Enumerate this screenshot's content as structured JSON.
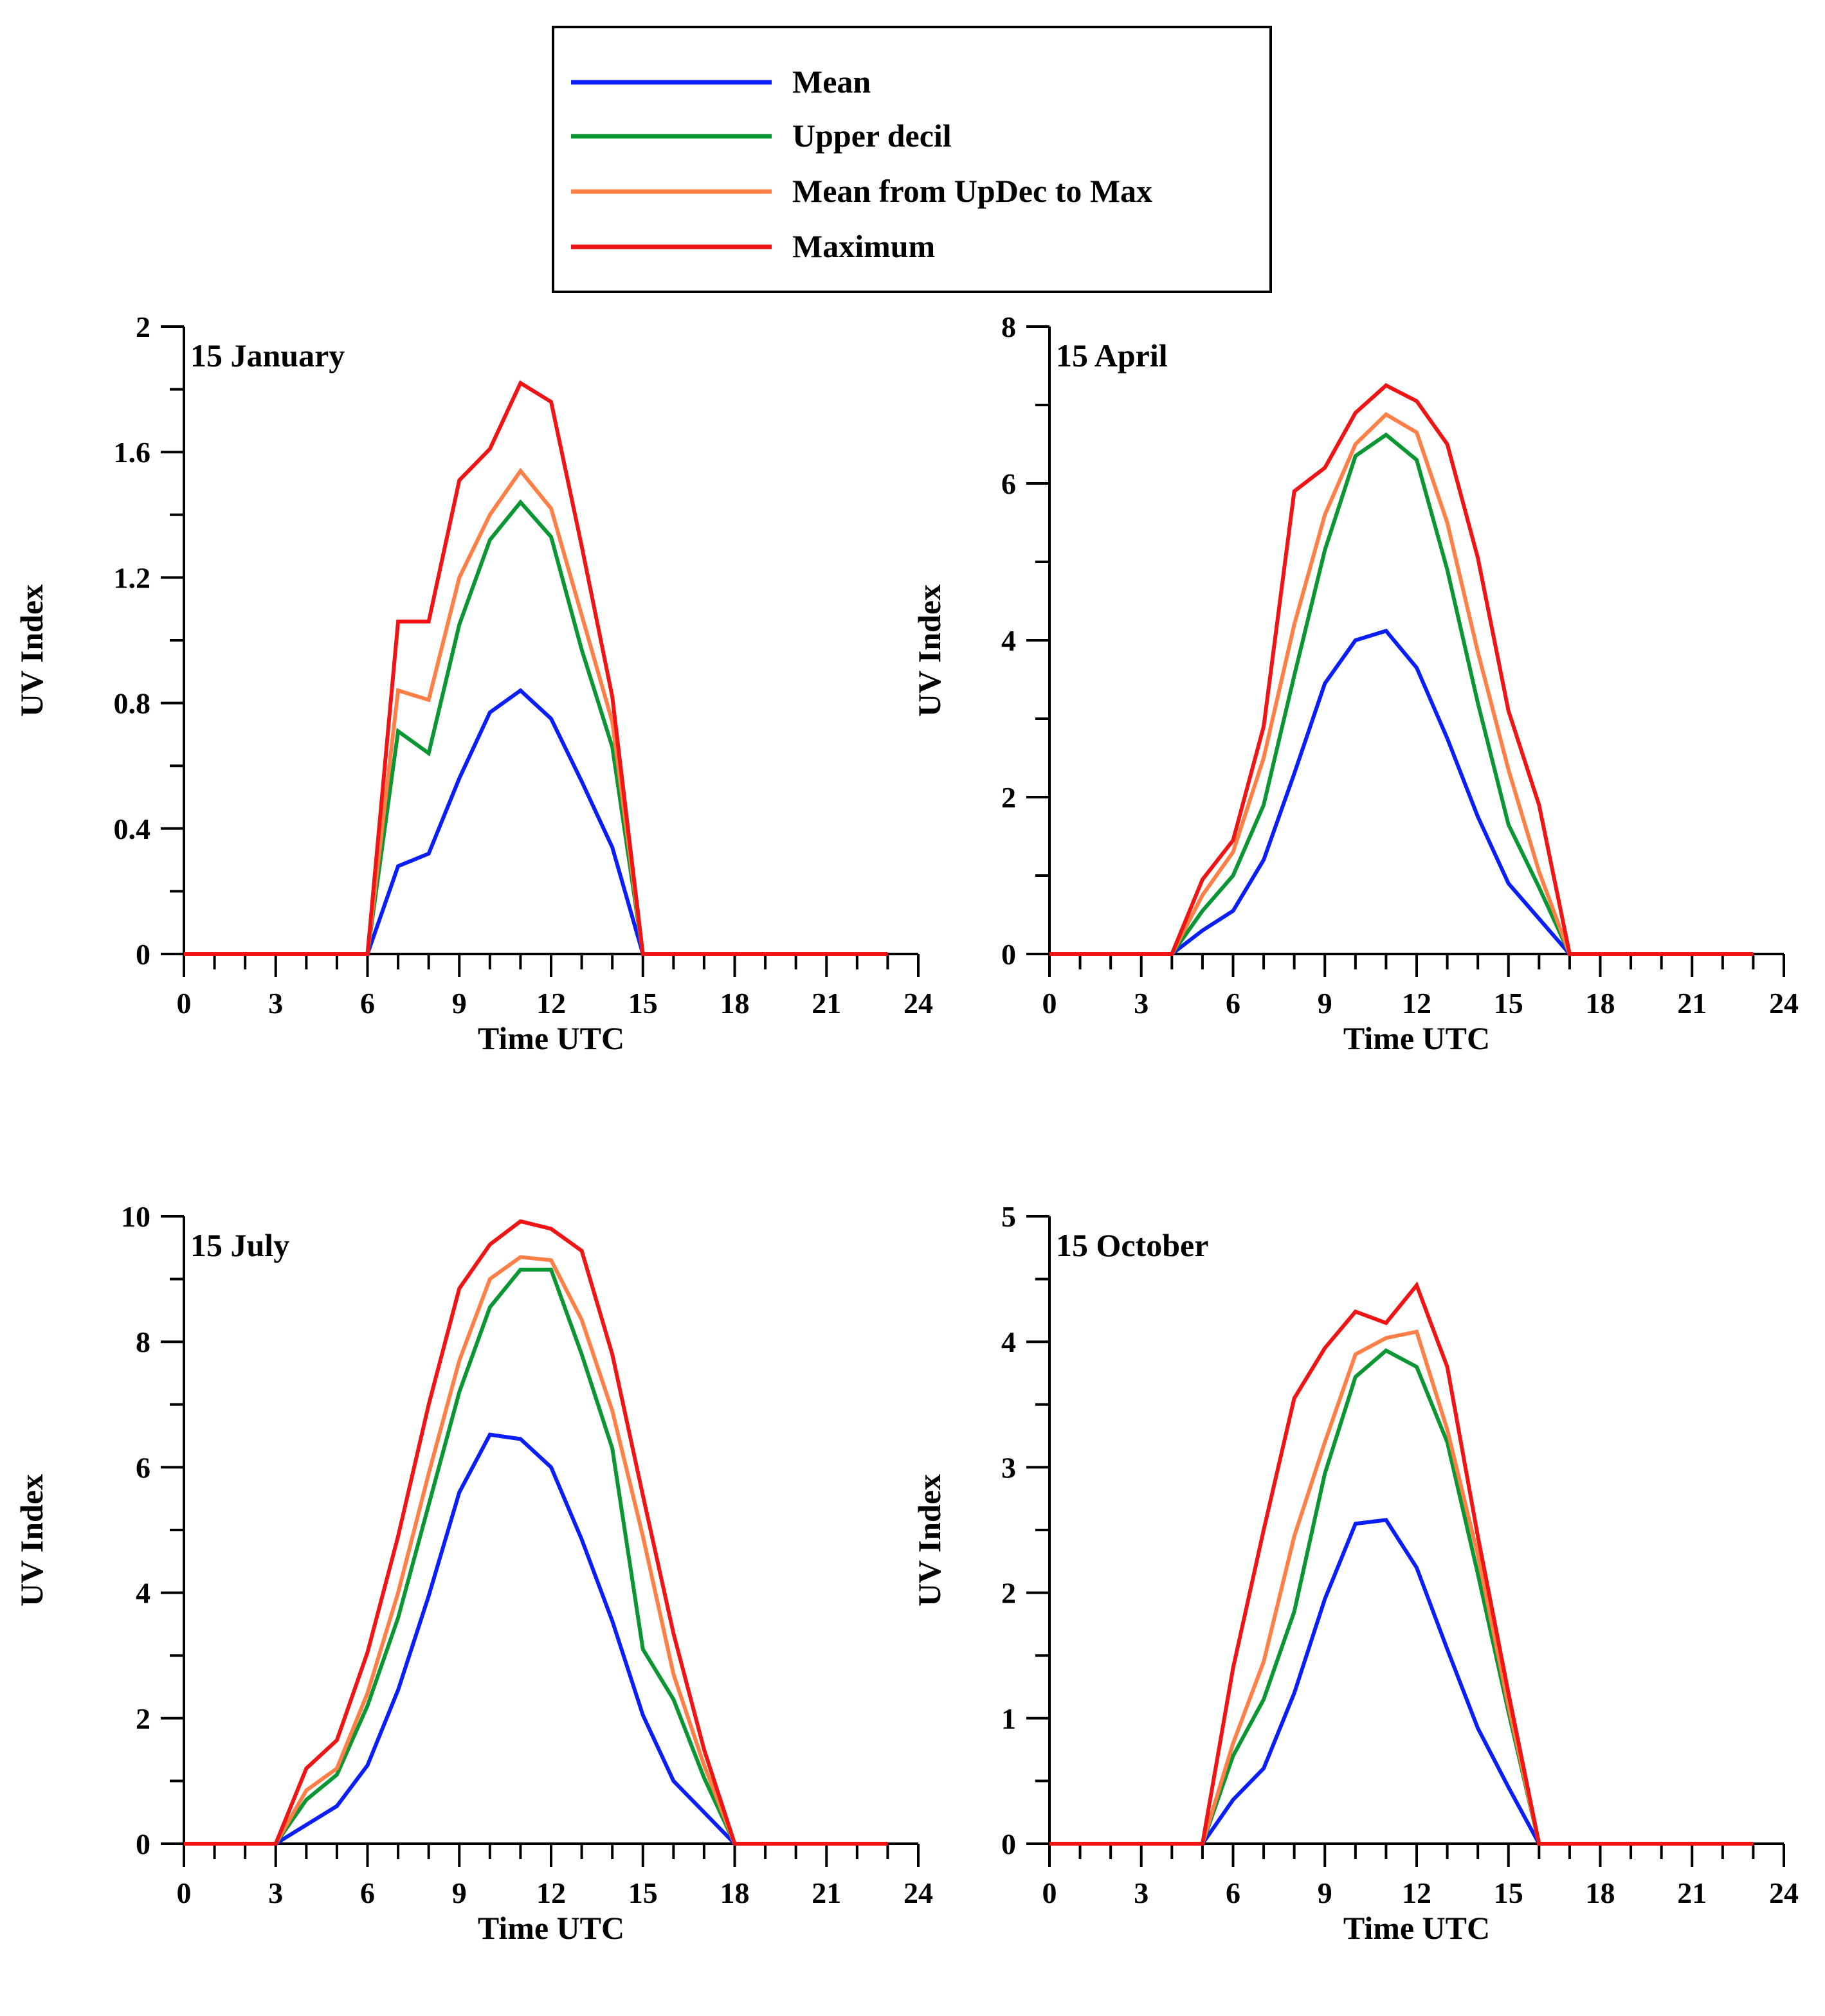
{
  "legend": {
    "entries": [
      {
        "label": "Mean",
        "color": "#0a1efa"
      },
      {
        "label": "Upper decil",
        "color": "#0a9632"
      },
      {
        "label": "Mean from UpDec to Max",
        "color": "#ff7f46"
      },
      {
        "label": "Maximum",
        "color": "#f01414"
      }
    ]
  },
  "chart_data": [
    {
      "type": "line",
      "title": "15 January",
      "xlabel": "Time UTC",
      "ylabel": "UV Index",
      "xlim": [
        0,
        24
      ],
      "ylim": [
        0,
        2
      ],
      "x_ticks": [
        0,
        3,
        6,
        9,
        12,
        15,
        18,
        21,
        24
      ],
      "y_ticks": [
        0,
        0.4,
        0.8,
        1.2,
        1.6,
        2
      ],
      "y_tick_labels": [
        "0",
        "0.4",
        "0.8",
        "1.2",
        "1.6",
        "2"
      ],
      "y_minor_step": 0.2,
      "x": [
        0,
        1,
        2,
        3,
        4,
        5,
        6,
        7,
        8,
        9,
        10,
        11,
        12,
        13,
        14,
        15,
        16,
        17,
        18,
        19,
        20,
        21,
        22,
        23
      ],
      "series": [
        {
          "name": "Mean",
          "values": [
            0,
            0,
            0,
            0,
            0,
            0,
            0,
            0.28,
            0.32,
            0.56,
            0.77,
            0.84,
            0.75,
            0.55,
            0.34,
            0,
            0,
            0,
            0,
            0,
            0,
            0,
            0,
            0
          ]
        },
        {
          "name": "Upper decil",
          "values": [
            0,
            0,
            0,
            0,
            0,
            0,
            0,
            0.71,
            0.64,
            1.05,
            1.32,
            1.44,
            1.33,
            0.97,
            0.66,
            0,
            0,
            0,
            0,
            0,
            0,
            0,
            0,
            0
          ]
        },
        {
          "name": "Mean from UpDec to Max",
          "values": [
            0,
            0,
            0,
            0,
            0,
            0,
            0,
            0.84,
            0.81,
            1.2,
            1.4,
            1.54,
            1.42,
            1.08,
            0.74,
            0,
            0,
            0,
            0,
            0,
            0,
            0,
            0,
            0
          ]
        },
        {
          "name": "Maximum",
          "values": [
            0,
            0,
            0,
            0,
            0,
            0,
            0,
            1.06,
            1.06,
            1.51,
            1.61,
            1.82,
            1.76,
            1.3,
            0.82,
            0,
            0,
            0,
            0,
            0,
            0,
            0,
            0,
            0
          ]
        }
      ]
    },
    {
      "type": "line",
      "title": "15 April",
      "xlabel": "Time UTC",
      "ylabel": "UV Index",
      "xlim": [
        0,
        24
      ],
      "ylim": [
        0,
        8
      ],
      "x_ticks": [
        0,
        3,
        6,
        9,
        12,
        15,
        18,
        21,
        24
      ],
      "y_ticks": [
        0,
        2,
        4,
        6,
        8
      ],
      "y_tick_labels": [
        "0",
        "2",
        "4",
        "6",
        "8"
      ],
      "y_minor_step": 1,
      "x": [
        0,
        1,
        2,
        3,
        4,
        5,
        6,
        7,
        8,
        9,
        10,
        11,
        12,
        13,
        14,
        15,
        16,
        17,
        18,
        19,
        20,
        21,
        22,
        23
      ],
      "series": [
        {
          "name": "Mean",
          "values": [
            0,
            0,
            0,
            0,
            0,
            0.3,
            0.55,
            1.2,
            2.3,
            3.45,
            4.0,
            4.12,
            3.65,
            2.75,
            1.75,
            0.9,
            0.45,
            0,
            0,
            0,
            0,
            0,
            0,
            0
          ]
        },
        {
          "name": "Upper decil",
          "values": [
            0,
            0,
            0,
            0,
            0,
            0.55,
            1.0,
            1.9,
            3.55,
            5.15,
            6.35,
            6.62,
            6.3,
            4.9,
            3.2,
            1.65,
            0.85,
            0,
            0,
            0,
            0,
            0,
            0,
            0
          ]
        },
        {
          "name": "Mean from UpDec to Max",
          "values": [
            0,
            0,
            0,
            0,
            0,
            0.75,
            1.3,
            2.5,
            4.2,
            5.6,
            6.5,
            6.88,
            6.65,
            5.5,
            3.85,
            2.35,
            1.05,
            0,
            0,
            0,
            0,
            0,
            0,
            0
          ]
        },
        {
          "name": "Maximum",
          "values": [
            0,
            0,
            0,
            0,
            0,
            0.95,
            1.45,
            2.9,
            5.9,
            6.2,
            6.9,
            7.25,
            7.05,
            6.5,
            5.05,
            3.1,
            1.9,
            0,
            0,
            0,
            0,
            0,
            0,
            0
          ]
        }
      ]
    },
    {
      "type": "line",
      "title": "15 July",
      "xlabel": "Time UTC",
      "ylabel": "UV Index",
      "xlim": [
        0,
        24
      ],
      "ylim": [
        0,
        10
      ],
      "x_ticks": [
        0,
        3,
        6,
        9,
        12,
        15,
        18,
        21,
        24
      ],
      "y_ticks": [
        0,
        2,
        4,
        6,
        8,
        10
      ],
      "y_tick_labels": [
        "0",
        "2",
        "4",
        "6",
        "8",
        "10"
      ],
      "y_minor_step": 1,
      "x": [
        0,
        1,
        2,
        3,
        4,
        5,
        6,
        7,
        8,
        9,
        10,
        11,
        12,
        13,
        14,
        15,
        16,
        17,
        18,
        19,
        20,
        21,
        22,
        23
      ],
      "series": [
        {
          "name": "Mean",
          "values": [
            0,
            0,
            0,
            0,
            0.3,
            0.6,
            1.25,
            2.45,
            3.95,
            5.6,
            6.52,
            6.45,
            6.0,
            4.85,
            3.55,
            2.05,
            1.0,
            0.5,
            0,
            0,
            0,
            0,
            0,
            0
          ]
        },
        {
          "name": "Upper decil",
          "values": [
            0,
            0,
            0,
            0,
            0.7,
            1.1,
            2.2,
            3.6,
            5.4,
            7.2,
            8.55,
            9.15,
            9.15,
            7.8,
            6.3,
            3.1,
            2.3,
            1.05,
            0,
            0,
            0,
            0,
            0,
            0
          ]
        },
        {
          "name": "Mean from UpDec to Max",
          "values": [
            0,
            0,
            0,
            0,
            0.85,
            1.2,
            2.4,
            4.0,
            5.9,
            7.7,
            9.0,
            9.35,
            9.3,
            8.35,
            6.9,
            4.9,
            2.7,
            1.25,
            0,
            0,
            0,
            0,
            0,
            0
          ]
        },
        {
          "name": "Maximum",
          "values": [
            0,
            0,
            0,
            0,
            1.2,
            1.65,
            3.05,
            4.9,
            7.0,
            8.85,
            9.55,
            9.92,
            9.8,
            9.45,
            7.8,
            5.55,
            3.35,
            1.5,
            0,
            0,
            0,
            0,
            0,
            0
          ]
        }
      ]
    },
    {
      "type": "line",
      "title": "15 October",
      "xlabel": "Time UTC",
      "ylabel": "UV Index",
      "xlim": [
        0,
        24
      ],
      "ylim": [
        0,
        5
      ],
      "x_ticks": [
        0,
        3,
        6,
        9,
        12,
        15,
        18,
        21,
        24
      ],
      "y_ticks": [
        0,
        1,
        2,
        3,
        4,
        5
      ],
      "y_tick_labels": [
        "0",
        "1",
        "2",
        "3",
        "4",
        "5"
      ],
      "y_minor_step": 0.5,
      "x": [
        0,
        1,
        2,
        3,
        4,
        5,
        6,
        7,
        8,
        9,
        10,
        11,
        12,
        13,
        14,
        15,
        16,
        17,
        18,
        19,
        20,
        21,
        22,
        23
      ],
      "series": [
        {
          "name": "Mean",
          "values": [
            0,
            0,
            0,
            0,
            0,
            0,
            0.35,
            0.6,
            1.2,
            1.95,
            2.55,
            2.58,
            2.2,
            1.55,
            0.92,
            0.45,
            0,
            0,
            0,
            0,
            0,
            0,
            0,
            0
          ]
        },
        {
          "name": "Upper decil",
          "values": [
            0,
            0,
            0,
            0,
            0,
            0,
            0.7,
            1.15,
            1.85,
            2.95,
            3.72,
            3.93,
            3.8,
            3.2,
            2.15,
            1.05,
            0,
            0,
            0,
            0,
            0,
            0,
            0,
            0
          ]
        },
        {
          "name": "Mean from UpDec to Max",
          "values": [
            0,
            0,
            0,
            0,
            0,
            0,
            0.8,
            1.45,
            2.45,
            3.2,
            3.9,
            4.03,
            4.08,
            3.3,
            2.3,
            1.1,
            0,
            0,
            0,
            0,
            0,
            0,
            0,
            0
          ]
        },
        {
          "name": "Maximum",
          "values": [
            0,
            0,
            0,
            0,
            0,
            0,
            1.4,
            2.5,
            3.55,
            3.95,
            4.24,
            4.15,
            4.45,
            3.8,
            2.45,
            1.2,
            0,
            0,
            0,
            0,
            0,
            0,
            0,
            0
          ]
        }
      ]
    }
  ]
}
